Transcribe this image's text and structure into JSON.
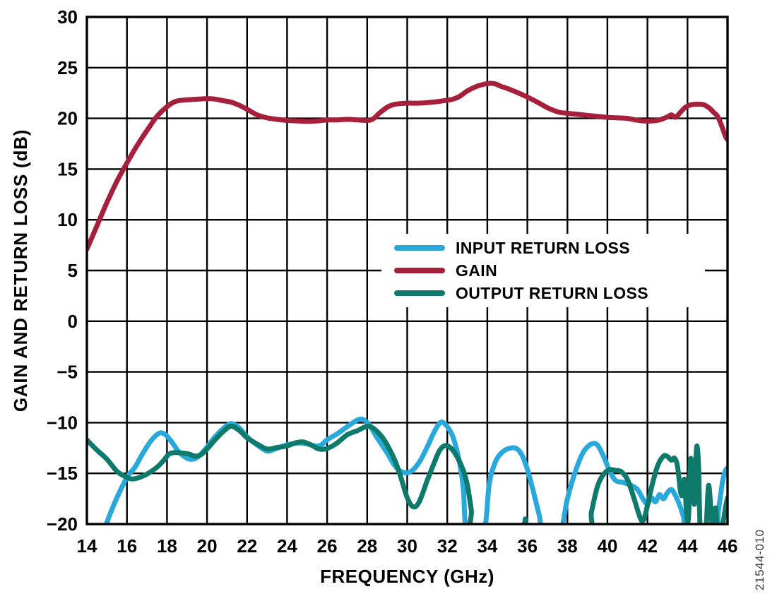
{
  "figure": {
    "y_axis_title": "GAIN AND RETURN LOSS (dB)",
    "x_axis_title": "FREQUENCY (GHz)",
    "figure_number": "21544-010",
    "background_color": "#ffffff",
    "grid_color": "#000000"
  },
  "chart_data": {
    "type": "line",
    "title": "",
    "xlabel": "FREQUENCY (GHz)",
    "ylabel": "GAIN AND RETURN LOSS (dB)",
    "xlim": [
      14,
      46
    ],
    "ylim": [
      -20,
      30
    ],
    "grid": true,
    "legend_position": "center-right",
    "x_ticks": [
      14,
      16,
      18,
      20,
      22,
      24,
      26,
      28,
      30,
      32,
      34,
      36,
      38,
      40,
      42,
      44,
      46
    ],
    "x_tick_labels": [
      "14",
      "16",
      "18",
      "20",
      "22",
      "24",
      "26",
      "28",
      "30",
      "32",
      "34",
      "36",
      "38",
      "40",
      "42",
      "44",
      "46"
    ],
    "y_ticks": [
      30,
      25,
      20,
      15,
      10,
      5,
      0,
      -5,
      -10,
      -15,
      -20
    ],
    "y_tick_labels": [
      "30",
      "25",
      "20",
      "15",
      "10",
      "5",
      "0",
      "−5",
      "−10",
      "−15",
      "−20"
    ],
    "series": [
      {
        "name": "INPUT RETURN LOSS",
        "color": "#29A9DB",
        "points": [
          [
            14.8,
            -21
          ],
          [
            15.1,
            -19.3
          ],
          [
            15.5,
            -17.4
          ],
          [
            16,
            -15.4
          ],
          [
            16.4,
            -14.4
          ],
          [
            16.8,
            -13
          ],
          [
            17.2,
            -11.8
          ],
          [
            17.6,
            -11.05
          ],
          [
            17.9,
            -11.15
          ],
          [
            18.2,
            -11.8
          ],
          [
            18.6,
            -12.9
          ],
          [
            19,
            -13.5
          ],
          [
            19.3,
            -13.6
          ],
          [
            19.6,
            -13.3
          ],
          [
            20,
            -12.4
          ],
          [
            20.4,
            -11.4
          ],
          [
            20.8,
            -10.6
          ],
          [
            21.2,
            -10.1
          ],
          [
            21.6,
            -10.5
          ],
          [
            22,
            -11.4
          ],
          [
            22.5,
            -12.2
          ],
          [
            23,
            -12.8
          ],
          [
            23.4,
            -12.6
          ],
          [
            23.8,
            -12.3
          ],
          [
            24.2,
            -12.1
          ],
          [
            24.6,
            -12
          ],
          [
            25,
            -12.1
          ],
          [
            25.4,
            -12.3
          ],
          [
            25.7,
            -12.2
          ],
          [
            26,
            -11.7
          ],
          [
            26.5,
            -11.1
          ],
          [
            27,
            -10.4
          ],
          [
            27.5,
            -9.75
          ],
          [
            27.8,
            -9.7
          ],
          [
            28.1,
            -10.2
          ],
          [
            28.5,
            -11.5
          ],
          [
            29,
            -13
          ],
          [
            29.4,
            -14.3
          ],
          [
            29.8,
            -14.9
          ],
          [
            30.2,
            -14.8
          ],
          [
            30.6,
            -13.9
          ],
          [
            31,
            -12.4
          ],
          [
            31.4,
            -10.7
          ],
          [
            31.7,
            -9.95
          ],
          [
            32,
            -10.4
          ],
          [
            32.3,
            -11.5
          ],
          [
            32.6,
            -13.8
          ],
          [
            32.8,
            -16.5
          ],
          [
            33,
            -21
          ],
          [
            33.8,
            -21
          ],
          [
            34.1,
            -16
          ],
          [
            34.4,
            -13.9
          ],
          [
            34.7,
            -13
          ],
          [
            35,
            -12.6
          ],
          [
            35.4,
            -12.5
          ],
          [
            35.7,
            -13.1
          ],
          [
            36,
            -14.6
          ],
          [
            36.3,
            -16.8
          ],
          [
            36.6,
            -19.2
          ],
          [
            36.8,
            -21
          ],
          [
            37.6,
            -21
          ],
          [
            38,
            -17.5
          ],
          [
            38.4,
            -14.8
          ],
          [
            38.8,
            -12.9
          ],
          [
            39.2,
            -12.1
          ],
          [
            39.5,
            -12.2
          ],
          [
            39.8,
            -13.3
          ],
          [
            40.1,
            -14.7
          ],
          [
            40.4,
            -15.7
          ],
          [
            40.8,
            -15.9
          ],
          [
            41.2,
            -16.2
          ],
          [
            41.5,
            -16.6
          ],
          [
            41.8,
            -17.6
          ],
          [
            42,
            -18
          ],
          [
            42.2,
            -17.4
          ],
          [
            42.4,
            -17.8
          ],
          [
            42.6,
            -17.1
          ],
          [
            42.8,
            -17.5
          ],
          [
            43,
            -16.9
          ],
          [
            43.2,
            -16.6
          ],
          [
            43.4,
            -17.2
          ],
          [
            43.6,
            -18.1
          ],
          [
            43.8,
            -19.3
          ],
          [
            44,
            -21
          ],
          [
            45.35,
            -21
          ],
          [
            45.55,
            -18.6
          ],
          [
            45.75,
            -15.8
          ],
          [
            45.9,
            -14.7
          ],
          [
            46,
            -14.5
          ]
        ]
      },
      {
        "name": "GAIN",
        "color": "#A6203C",
        "points": [
          [
            14,
            7.1
          ],
          [
            14.5,
            9.4
          ],
          [
            15,
            11.7
          ],
          [
            15.5,
            13.8
          ],
          [
            16,
            15.6
          ],
          [
            16.5,
            17.3
          ],
          [
            17,
            18.8
          ],
          [
            17.5,
            20.2
          ],
          [
            18,
            21.15
          ],
          [
            18.4,
            21.65
          ],
          [
            18.8,
            21.8
          ],
          [
            19.2,
            21.85
          ],
          [
            19.6,
            21.9
          ],
          [
            20,
            21.95
          ],
          [
            20.4,
            21.9
          ],
          [
            20.8,
            21.75
          ],
          [
            21.2,
            21.6
          ],
          [
            21.6,
            21.3
          ],
          [
            22,
            20.9
          ],
          [
            22.5,
            20.35
          ],
          [
            23,
            20.05
          ],
          [
            23.5,
            19.9
          ],
          [
            24,
            19.8
          ],
          [
            24.5,
            19.75
          ],
          [
            25,
            19.7
          ],
          [
            25.5,
            19.75
          ],
          [
            26,
            19.85
          ],
          [
            26.5,
            19.85
          ],
          [
            27,
            19.9
          ],
          [
            27.5,
            19.85
          ],
          [
            28,
            19.8
          ],
          [
            28.3,
            19.95
          ],
          [
            28.6,
            20.5
          ],
          [
            29,
            21.1
          ],
          [
            29.3,
            21.35
          ],
          [
            29.6,
            21.45
          ],
          [
            30,
            21.5
          ],
          [
            30.5,
            21.5
          ],
          [
            31,
            21.55
          ],
          [
            31.5,
            21.65
          ],
          [
            32,
            21.8
          ],
          [
            32.3,
            21.9
          ],
          [
            32.6,
            22.15
          ],
          [
            33,
            22.7
          ],
          [
            33.4,
            23.1
          ],
          [
            33.8,
            23.35
          ],
          [
            34.1,
            23.45
          ],
          [
            34.4,
            23.4
          ],
          [
            34.7,
            23.15
          ],
          [
            35,
            22.95
          ],
          [
            35.5,
            22.55
          ],
          [
            36,
            22.1
          ],
          [
            36.5,
            21.6
          ],
          [
            37,
            21.05
          ],
          [
            37.3,
            20.8
          ],
          [
            37.6,
            20.6
          ],
          [
            38,
            20.5
          ],
          [
            38.5,
            20.4
          ],
          [
            39,
            20.3
          ],
          [
            39.5,
            20.2
          ],
          [
            40,
            20.1
          ],
          [
            40.5,
            20.05
          ],
          [
            41,
            20
          ],
          [
            41.4,
            19.85
          ],
          [
            41.8,
            19.75
          ],
          [
            42.2,
            19.75
          ],
          [
            42.6,
            19.85
          ],
          [
            43,
            20.15
          ],
          [
            43.2,
            20.35
          ],
          [
            43.4,
            20.1
          ],
          [
            43.6,
            20.5
          ],
          [
            43.9,
            21.1
          ],
          [
            44.2,
            21.35
          ],
          [
            44.5,
            21.4
          ],
          [
            44.8,
            21.35
          ],
          [
            45.1,
            21
          ],
          [
            45.3,
            20.6
          ],
          [
            45.5,
            20.2
          ],
          [
            45.7,
            19.3
          ],
          [
            45.9,
            18.2
          ],
          [
            46,
            17.9
          ]
        ]
      },
      {
        "name": "OUTPUT RETURN LOSS",
        "color": "#0E7A6C",
        "points": [
          [
            14,
            -11.7
          ],
          [
            14.5,
            -12.7
          ],
          [
            15,
            -13.6
          ],
          [
            15.5,
            -14.8
          ],
          [
            16,
            -15.4
          ],
          [
            16.3,
            -15.55
          ],
          [
            16.7,
            -15.35
          ],
          [
            17.1,
            -14.95
          ],
          [
            17.5,
            -14.4
          ],
          [
            17.8,
            -13.8
          ],
          [
            18.1,
            -13.1
          ],
          [
            18.4,
            -12.95
          ],
          [
            18.8,
            -13
          ],
          [
            19.1,
            -13.1
          ],
          [
            19.4,
            -13.3
          ],
          [
            19.7,
            -13.15
          ],
          [
            20,
            -12.6
          ],
          [
            20.4,
            -11.7
          ],
          [
            20.8,
            -10.9
          ],
          [
            21.2,
            -10.35
          ],
          [
            21.6,
            -10.75
          ],
          [
            22,
            -11.5
          ],
          [
            22.5,
            -12.1
          ],
          [
            23,
            -12.6
          ],
          [
            23.5,
            -12.45
          ],
          [
            24,
            -12.3
          ],
          [
            24.4,
            -12
          ],
          [
            24.8,
            -11.9
          ],
          [
            25.2,
            -12.2
          ],
          [
            25.6,
            -12.6
          ],
          [
            26,
            -12.55
          ],
          [
            26.5,
            -12
          ],
          [
            27,
            -11.2
          ],
          [
            27.5,
            -10.8
          ],
          [
            28,
            -10.35
          ],
          [
            28.3,
            -10.55
          ],
          [
            28.7,
            -11.3
          ],
          [
            29,
            -12.2
          ],
          [
            29.4,
            -13.8
          ],
          [
            29.7,
            -15.5
          ],
          [
            30,
            -17.4
          ],
          [
            30.3,
            -18.3
          ],
          [
            30.6,
            -17.8
          ],
          [
            31,
            -15.7
          ],
          [
            31.3,
            -14.2
          ],
          [
            31.6,
            -12.8
          ],
          [
            31.9,
            -12.25
          ],
          [
            32.2,
            -12.55
          ],
          [
            32.5,
            -13.4
          ],
          [
            32.8,
            -14.7
          ],
          [
            33,
            -16.1
          ],
          [
            33.2,
            -18.6
          ],
          [
            33.35,
            -21
          ],
          [
            35.7,
            -21
          ],
          [
            35.9,
            -19.5
          ],
          [
            36.1,
            -21
          ],
          [
            38.95,
            -21
          ],
          [
            39.2,
            -18.8
          ],
          [
            39.5,
            -16.3
          ],
          [
            39.8,
            -15.1
          ],
          [
            40.1,
            -14.65
          ],
          [
            40.4,
            -14.7
          ],
          [
            40.7,
            -14.85
          ],
          [
            41,
            -15.6
          ],
          [
            41.3,
            -17.3
          ],
          [
            41.6,
            -19.2
          ],
          [
            41.75,
            -19.7
          ],
          [
            41.9,
            -19
          ],
          [
            42.2,
            -16.4
          ],
          [
            42.5,
            -14.3
          ],
          [
            42.8,
            -13.3
          ],
          [
            43,
            -13.35
          ],
          [
            43.2,
            -13.7
          ],
          [
            43.35,
            -13.5
          ],
          [
            43.5,
            -14.3
          ],
          [
            43.65,
            -16.8
          ],
          [
            43.75,
            -17.1
          ],
          [
            43.85,
            -15.6
          ],
          [
            43.95,
            -18.9
          ],
          [
            44.05,
            -19.4
          ],
          [
            44.15,
            -13.7
          ],
          [
            44.25,
            -15.2
          ],
          [
            44.35,
            -18
          ],
          [
            44.45,
            -12.5
          ],
          [
            44.55,
            -14.2
          ],
          [
            44.65,
            -21
          ],
          [
            44.9,
            -21
          ],
          [
            45.05,
            -16.2
          ],
          [
            45.2,
            -19.5
          ],
          [
            45.3,
            -21
          ],
          [
            45.4,
            -18.4
          ],
          [
            45.5,
            -21
          ],
          [
            45.65,
            -21
          ],
          [
            45.8,
            -19.6
          ],
          [
            45.9,
            -18.3
          ],
          [
            46,
            -17.4
          ]
        ]
      }
    ]
  },
  "legend": {
    "items": [
      {
        "label": "INPUT RETURN LOSS",
        "color": "#29A9DB"
      },
      {
        "label": "GAIN",
        "color": "#A6203C"
      },
      {
        "label": "OUTPUT RETURN LOSS",
        "color": "#0E7A6C"
      }
    ]
  }
}
